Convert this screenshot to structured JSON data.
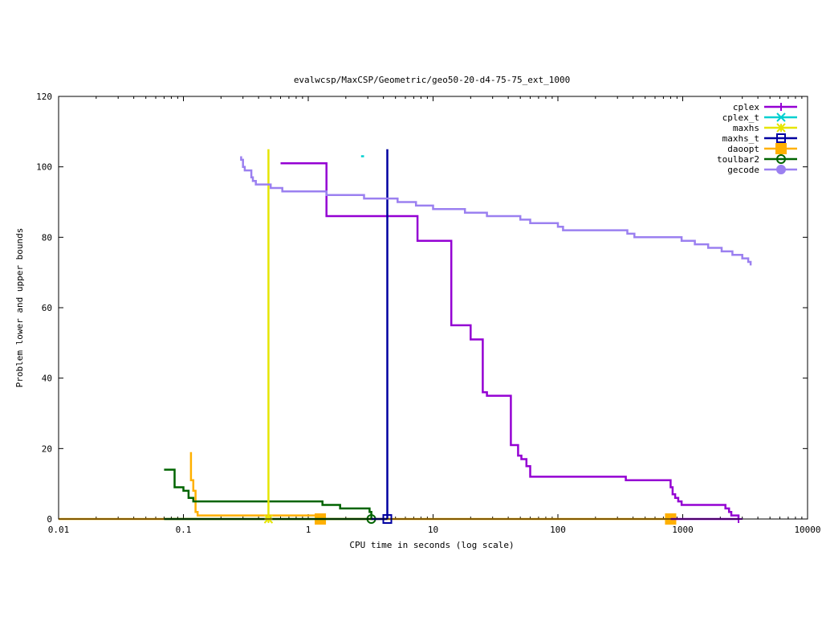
{
  "chart_data": {
    "type": "line",
    "title": "evalwcsp/MaxCSP/Geometric/geo50-20-d4-75-75_ext_1000",
    "xlabel": "CPU time in seconds (log scale)",
    "ylabel": "Problem lower and upper bounds",
    "xscale": "log",
    "xlim": [
      0.01,
      10000
    ],
    "ylim": [
      0,
      120
    ],
    "x_ticks": [
      {
        "value": 0.01,
        "label": "0.01"
      },
      {
        "value": 0.1,
        "label": "0.1"
      },
      {
        "value": 1,
        "label": "1"
      },
      {
        "value": 10,
        "label": "10"
      },
      {
        "value": 100,
        "label": "100"
      },
      {
        "value": 1000,
        "label": "1000"
      },
      {
        "value": 10000,
        "label": "10000"
      }
    ],
    "y_ticks": [
      {
        "value": 0,
        "label": "0"
      },
      {
        "value": 20,
        "label": "20"
      },
      {
        "value": 40,
        "label": "40"
      },
      {
        "value": 60,
        "label": "60"
      },
      {
        "value": 80,
        "label": "80"
      },
      {
        "value": 100,
        "label": "100"
      },
      {
        "value": 120,
        "label": "120"
      }
    ],
    "legend_position": "top-right",
    "series": [
      {
        "name": "cplex",
        "color": "#9400d3",
        "marker": "plus",
        "steps": [
          [
            0.6,
            101
          ],
          [
            1.4,
            101
          ],
          [
            1.4,
            86
          ],
          [
            7.5,
            86
          ],
          [
            7.5,
            79
          ],
          [
            14,
            79
          ],
          [
            14,
            55
          ],
          [
            20,
            55
          ],
          [
            20,
            51
          ],
          [
            25,
            51
          ],
          [
            25,
            36
          ],
          [
            27,
            36
          ],
          [
            27,
            35
          ],
          [
            42,
            35
          ],
          [
            42,
            21
          ],
          [
            48,
            21
          ],
          [
            48,
            18
          ],
          [
            51,
            18
          ],
          [
            51,
            17
          ],
          [
            56,
            17
          ],
          [
            56,
            15
          ],
          [
            60,
            15
          ],
          [
            60,
            12
          ],
          [
            350,
            12
          ],
          [
            350,
            11
          ],
          [
            800,
            11
          ],
          [
            800,
            9
          ],
          [
            830,
            9
          ],
          [
            830,
            7
          ],
          [
            870,
            7
          ],
          [
            870,
            6
          ],
          [
            920,
            6
          ],
          [
            920,
            5
          ],
          [
            980,
            5
          ],
          [
            980,
            4
          ],
          [
            2200,
            4
          ],
          [
            2200,
            3
          ],
          [
            2350,
            3
          ],
          [
            2350,
            2
          ],
          [
            2450,
            2
          ],
          [
            2450,
            1
          ],
          [
            2800,
            1
          ],
          [
            2800,
            0
          ]
        ],
        "baseline": [
          [
            800,
            0
          ],
          [
            2800,
            0
          ]
        ],
        "markers": [
          [
            2800,
            0
          ]
        ]
      },
      {
        "name": "cplex_t",
        "color": "#00d0d0",
        "marker": "x",
        "steps": [
          [
            2.65,
            103
          ],
          [
            2.8,
            103
          ]
        ],
        "markers": []
      },
      {
        "name": "maxhs",
        "color": "#e5e500",
        "marker": "star",
        "steps": [],
        "verticals": [
          [
            0.48,
            0,
            105
          ]
        ],
        "markers": [
          [
            0.48,
            0
          ]
        ]
      },
      {
        "name": "maxhs_t",
        "color": "#0000a0",
        "marker": "square",
        "steps": [],
        "verticals": [
          [
            4.3,
            0,
            105
          ]
        ],
        "baseline": [
          [
            3.2,
            0
          ],
          [
            4.3,
            0
          ]
        ],
        "markers": [
          [
            4.3,
            0
          ]
        ]
      },
      {
        "name": "daoopt",
        "color": "#ffb000",
        "marker": "filled-square",
        "steps": [
          [
            0.115,
            19
          ],
          [
            0.115,
            11
          ],
          [
            0.12,
            11
          ],
          [
            0.12,
            8
          ],
          [
            0.125,
            8
          ],
          [
            0.125,
            2
          ],
          [
            0.13,
            2
          ],
          [
            0.13,
            1
          ],
          [
            1.25,
            1
          ],
          [
            1.25,
            0
          ]
        ],
        "baseline": [
          [
            0.01,
            0
          ],
          [
            900,
            0
          ]
        ],
        "markers": [
          [
            1.25,
            0
          ],
          [
            800,
            0
          ]
        ]
      },
      {
        "name": "toulbar2",
        "color": "#006400",
        "marker": "circle",
        "steps": [
          [
            0.07,
            14
          ],
          [
            0.085,
            14
          ],
          [
            0.085,
            9
          ],
          [
            0.1,
            9
          ],
          [
            0.1,
            8
          ],
          [
            0.11,
            8
          ],
          [
            0.11,
            6
          ],
          [
            0.12,
            6
          ],
          [
            0.12,
            5
          ],
          [
            1.3,
            5
          ],
          [
            1.3,
            4
          ],
          [
            1.8,
            4
          ],
          [
            1.8,
            3
          ],
          [
            3.1,
            3
          ],
          [
            3.1,
            2
          ],
          [
            3.2,
            2
          ],
          [
            3.2,
            0
          ]
        ],
        "baseline": [
          [
            0.07,
            0
          ],
          [
            3.3,
            0
          ]
        ],
        "markers": [
          [
            3.2,
            0
          ]
        ]
      },
      {
        "name": "gecode",
        "color": "#9b80f0",
        "marker": "filled-circle",
        "steps": [
          [
            0.29,
            103
          ],
          [
            0.29,
            102
          ],
          [
            0.3,
            102
          ],
          [
            0.3,
            100
          ],
          [
            0.31,
            100
          ],
          [
            0.31,
            99
          ],
          [
            0.35,
            99
          ],
          [
            0.35,
            97
          ],
          [
            0.36,
            97
          ],
          [
            0.36,
            96
          ],
          [
            0.38,
            96
          ],
          [
            0.38,
            95
          ],
          [
            0.5,
            95
          ],
          [
            0.5,
            94
          ],
          [
            0.62,
            94
          ],
          [
            0.62,
            93
          ],
          [
            1.4,
            93
          ],
          [
            1.4,
            92
          ],
          [
            2.8,
            92
          ],
          [
            2.8,
            91
          ],
          [
            5.2,
            91
          ],
          [
            5.2,
            90
          ],
          [
            7.3,
            90
          ],
          [
            7.3,
            89
          ],
          [
            10,
            89
          ],
          [
            10,
            88
          ],
          [
            18,
            88
          ],
          [
            18,
            87
          ],
          [
            27,
            87
          ],
          [
            27,
            86
          ],
          [
            50,
            86
          ],
          [
            50,
            85
          ],
          [
            60,
            85
          ],
          [
            60,
            84
          ],
          [
            100,
            84
          ],
          [
            100,
            83
          ],
          [
            110,
            83
          ],
          [
            110,
            82
          ],
          [
            180,
            82
          ],
          [
            180,
            82
          ],
          [
            360,
            82
          ],
          [
            360,
            81
          ],
          [
            410,
            81
          ],
          [
            410,
            80
          ],
          [
            980,
            80
          ],
          [
            980,
            79
          ],
          [
            1250,
            79
          ],
          [
            1250,
            78
          ],
          [
            1600,
            78
          ],
          [
            1600,
            77
          ],
          [
            2050,
            77
          ],
          [
            2050,
            76
          ],
          [
            2500,
            76
          ],
          [
            2500,
            75
          ],
          [
            3000,
            75
          ],
          [
            3000,
            74
          ],
          [
            3350,
            74
          ],
          [
            3350,
            73
          ],
          [
            3500,
            73
          ],
          [
            3500,
            72
          ]
        ],
        "markers": []
      }
    ]
  }
}
